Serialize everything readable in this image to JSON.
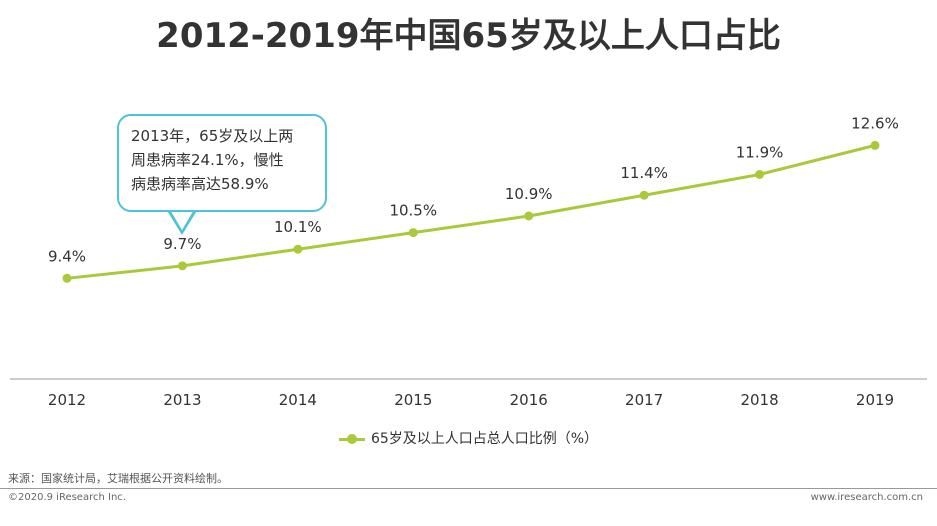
{
  "chart_data": {
    "type": "line",
    "title": "2012-2019年中国65岁及以上人口占比",
    "categories": [
      "2012",
      "2013",
      "2014",
      "2015",
      "2016",
      "2017",
      "2018",
      "2019"
    ],
    "series": [
      {
        "name": "65岁及以上人口占总人口比例（%）",
        "values": [
          9.4,
          9.7,
          10.1,
          10.5,
          10.9,
          11.4,
          11.9,
          12.6
        ],
        "labels": [
          "9.4%",
          "9.7%",
          "10.1%",
          "10.5%",
          "10.9%",
          "11.4%",
          "11.9%",
          "12.6%"
        ]
      }
    ],
    "xlabel": "",
    "ylabel": "",
    "ylim": [
      7.0,
      13.5
    ],
    "grid": false,
    "legend": "bottom",
    "annotation": {
      "target": "2013",
      "lines": [
        "2013年，65岁及以上两",
        "周患病率24.1%，慢性",
        "病患病率高达58.9%"
      ]
    }
  },
  "colors": {
    "line": "#a9c93a",
    "axis": "#999999",
    "callout_border": "#4fc3d6"
  },
  "source_text": "来源：国家统计局，艾瑞根据公开资料绘制。",
  "copyright": "©2020.9 iResearch Inc.",
  "website": "www.iresearch.com.cn"
}
